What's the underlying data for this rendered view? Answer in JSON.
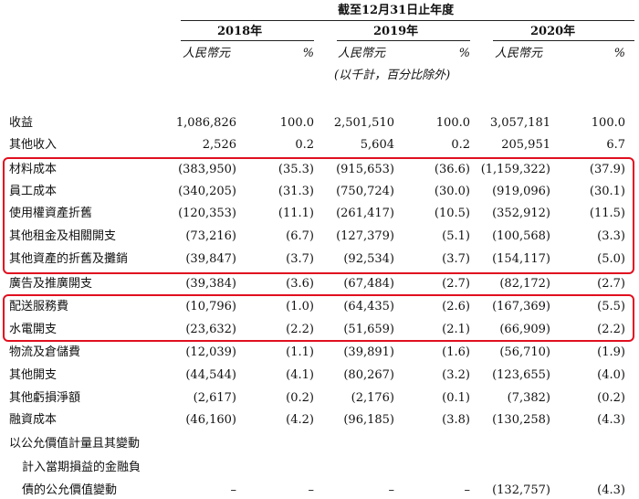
{
  "header": {
    "title": "截至12月31日止年度",
    "years": [
      "2018年",
      "2019年",
      "2020年"
    ],
    "currency": "人民幣元",
    "percent": "%",
    "note": "(以千計，百分比除外)"
  },
  "rows": [
    {
      "label": "收益",
      "cells": [
        "1,086,826",
        "100.0",
        "2,501,510",
        "100.0",
        "3,057,181",
        "100.0"
      ]
    },
    {
      "label": "其他收入",
      "cells": [
        "2,526",
        "0.2",
        "5,604",
        "0.2",
        "205,951",
        "6.7"
      ]
    },
    {
      "label": "材料成本",
      "cells": [
        "(383,950)",
        "(35.3)",
        "(915,653)",
        "(36.6)",
        "(1,159,322)",
        "(37.9)"
      ]
    },
    {
      "label": "員工成本",
      "cells": [
        "(340,205)",
        "(31.3)",
        "(750,724)",
        "(30.0)",
        "(919,096)",
        "(30.1)"
      ]
    },
    {
      "label": "使用權資產折舊",
      "cells": [
        "(120,353)",
        "(11.1)",
        "(261,417)",
        "(10.5)",
        "(352,912)",
        "(11.5)"
      ]
    },
    {
      "label": "其他租金及相關開支",
      "cells": [
        "(73,216)",
        "(6.7)",
        "(127,379)",
        "(5.1)",
        "(100,568)",
        "(3.3)"
      ]
    },
    {
      "label": "其他資產的折舊及攤銷",
      "cells": [
        "(39,847)",
        "(3.7)",
        "(92,534)",
        "(3.7)",
        "(154,117)",
        "(5.0)"
      ]
    },
    {
      "label": "廣告及推廣開支",
      "cells": [
        "(39,384)",
        "(3.6)",
        "(67,484)",
        "(2.7)",
        "(82,172)",
        "(2.7)"
      ]
    },
    {
      "label": "配送服務費",
      "cells": [
        "(10,796)",
        "(1.0)",
        "(64,435)",
        "(2.6)",
        "(167,369)",
        "(5.5)"
      ]
    },
    {
      "label": "水電開支",
      "cells": [
        "(23,632)",
        "(2.2)",
        "(51,659)",
        "(2.1)",
        "(66,909)",
        "(2.2)"
      ]
    },
    {
      "label": "物流及倉儲費",
      "cells": [
        "(12,039)",
        "(1.1)",
        "(39,891)",
        "(1.6)",
        "(56,710)",
        "(1.9)"
      ]
    },
    {
      "label": "其他開支",
      "cells": [
        "(44,544)",
        "(4.1)",
        "(80,267)",
        "(3.2)",
        "(123,655)",
        "(4.0)"
      ]
    },
    {
      "label": "其他虧損淨額",
      "cells": [
        "(2,617)",
        "(0.2)",
        "(2,176)",
        "(0.1)",
        "(7,382)",
        "(0.2)"
      ]
    },
    {
      "label": "融資成本",
      "cells": [
        "(46,160)",
        "(4.2)",
        "(96,185)",
        "(3.8)",
        "(130,258)",
        "(4.3)"
      ]
    },
    {
      "label": "以公允價值計量且其變動",
      "cells": [
        "",
        "",
        "",
        "",
        "",
        ""
      ]
    },
    {
      "label": "計入當期損益的金融負",
      "cells": [
        "",
        "",
        "",
        "",
        "",
        ""
      ]
    },
    {
      "label": "債的公允價值變動",
      "cells": [
        "–",
        "–",
        "–",
        "–",
        "(132,757)",
        "(4.3)"
      ]
    }
  ],
  "highlight_color": "#e01020"
}
